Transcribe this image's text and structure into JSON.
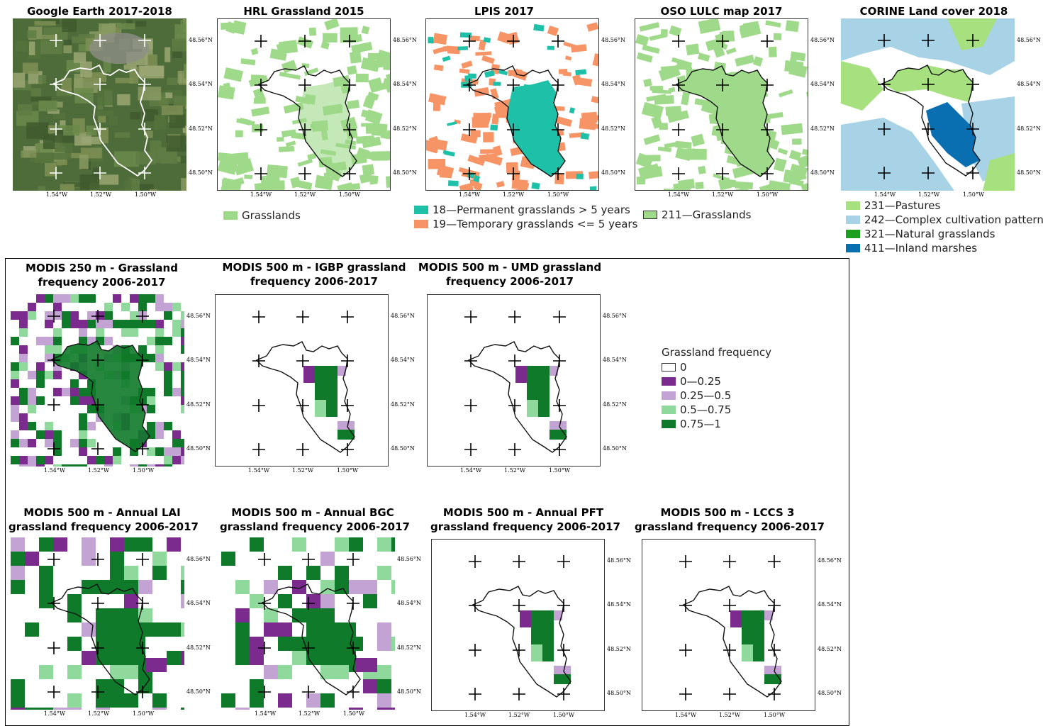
{
  "panels_top": [
    {
      "id": "ge",
      "title": "Google Earth 2017-2018"
    },
    {
      "id": "hrl",
      "title": "HRL Grassland 2015"
    },
    {
      "id": "lpis",
      "title": "LPIS 2017"
    },
    {
      "id": "oso",
      "title": "OSO LULC map 2017"
    },
    {
      "id": "corine",
      "title": "CORINE Land cover 2018"
    }
  ],
  "panels_mid": [
    {
      "id": "m250",
      "title_line1": "MODIS 250 m - Grassland",
      "title_line2": "frequency 2006-2017"
    },
    {
      "id": "igbp",
      "title_line1": "MODIS 500 m - IGBP grassland",
      "title_line2": "frequency 2006-2017"
    },
    {
      "id": "umd",
      "title_line1": "MODIS 500 m - UMD grassland",
      "title_line2": "frequency 2006-2017"
    }
  ],
  "panels_bot": [
    {
      "id": "lai",
      "title_line1": "MODIS 500 m - Annual LAI",
      "title_line2": "grassland frequency 2006-2017"
    },
    {
      "id": "bgc",
      "title_line1": "MODIS 500 m - Annual BGC",
      "title_line2": "grassland frequency 2006-2017"
    },
    {
      "id": "pft",
      "title_line1": "MODIS 500 m - Annual PFT",
      "title_line2": "grassland frequency 2006-2017"
    },
    {
      "id": "lccs",
      "title_line1": "MODIS 500 m - LCCS 3",
      "title_line2": "grassland frequency 2006-2017"
    }
  ],
  "lat_labels": [
    "48.56°N",
    "48.54°N",
    "48.52°N",
    "48.50°N"
  ],
  "lon_labels": [
    "1.54°W",
    "1.52°W",
    "1.50°W"
  ],
  "legends": {
    "hrl": [
      {
        "label": "Grasslands",
        "color": "#9fd98a"
      }
    ],
    "lpis": [
      {
        "label": "18—Permanent grasslands > 5 years",
        "color": "#1fc0a8"
      },
      {
        "label": "19—Temporary grasslands <= 5 years",
        "color": "#f79466"
      }
    ],
    "oso": [
      {
        "label": "211—Grasslands",
        "color": "#9fd98a"
      }
    ],
    "corine": [
      {
        "label": "231—Pastures",
        "color": "#a6e07f"
      },
      {
        "label": "242—Complex cultivation patterns",
        "color": "#a8d2e6"
      },
      {
        "label": "321—Natural grasslands",
        "color": "#1e9e1e"
      },
      {
        "label": "411—Inland marshes",
        "color": "#0a6fb0"
      }
    ],
    "frequency": {
      "title": "Grassland frequency",
      "items": [
        {
          "label": "0",
          "color": "#ffffff"
        },
        {
          "label": "0—0.25",
          "color": "#7b2a8e"
        },
        {
          "label": "0.25—0.5",
          "color": "#c3a3d3"
        },
        {
          "label": "0.5—0.75",
          "color": "#8fd99c"
        },
        {
          "label": "0.75—1",
          "color": "#0f7a2a"
        }
      ]
    }
  },
  "colors": {
    "grass_light": "#9fd98a",
    "lpis_perm": "#1fc0a8",
    "lpis_temp": "#f79466",
    "corine_pasture": "#a6e07f",
    "corine_complex": "#a8d2e6",
    "corine_natural": "#1e9e1e",
    "corine_marsh": "#0a6fb0",
    "freq_0_025": "#7b2a8e",
    "freq_025_05": "#c3a3d3",
    "freq_05_075": "#8fd99c",
    "freq_075_1": "#0f7a2a",
    "boundary": "#111111",
    "satellite_base": "#4e6b3a"
  }
}
